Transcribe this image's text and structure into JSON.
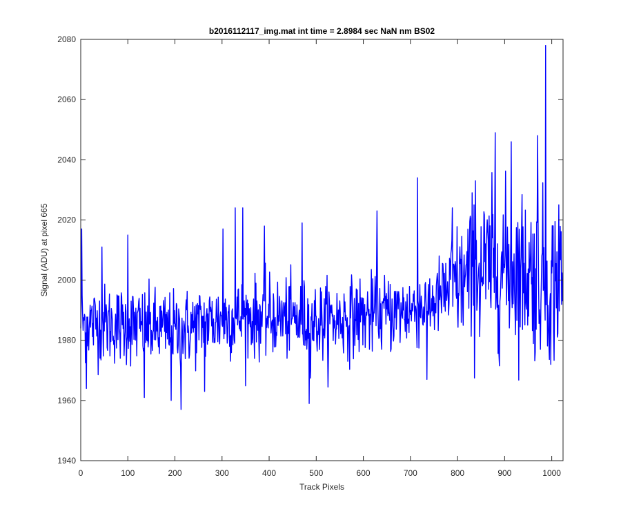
{
  "chart_data": {
    "type": "line",
    "title": "b2016112117_img.mat int time = 2.8984 sec  NaN nm BS02",
    "xlabel": "Track Pixels",
    "ylabel": "Signal (ADU) at pixel 665",
    "xlim": [
      0,
      1024
    ],
    "ylim": [
      1940,
      2080
    ],
    "xticks": [
      0,
      100,
      200,
      300,
      400,
      500,
      600,
      700,
      800,
      900,
      1000
    ],
    "yticks": [
      1940,
      1960,
      1980,
      2000,
      2020,
      2040,
      2060,
      2080
    ],
    "grid": false,
    "legend": "none",
    "line_color": "#0000ff",
    "n_points": 1024,
    "trend": [
      {
        "x": 0,
        "y": 1986
      },
      {
        "x": 100,
        "y": 1985
      },
      {
        "x": 200,
        "y": 1983
      },
      {
        "x": 300,
        "y": 1987
      },
      {
        "x": 400,
        "y": 1988
      },
      {
        "x": 500,
        "y": 1986
      },
      {
        "x": 600,
        "y": 1988
      },
      {
        "x": 700,
        "y": 1990
      },
      {
        "x": 750,
        "y": 1993
      },
      {
        "x": 800,
        "y": 1999
      },
      {
        "x": 850,
        "y": 2003
      },
      {
        "x": 900,
        "y": 2005
      },
      {
        "x": 950,
        "y": 2003
      },
      {
        "x": 1023,
        "y": 1999
      }
    ],
    "peaks": [
      {
        "x": 2,
        "y": 2017
      },
      {
        "x": 12,
        "y": 1964
      },
      {
        "x": 45,
        "y": 2011
      },
      {
        "x": 100,
        "y": 2015
      },
      {
        "x": 135,
        "y": 1961
      },
      {
        "x": 192,
        "y": 1960
      },
      {
        "x": 213,
        "y": 1957
      },
      {
        "x": 263,
        "y": 1963
      },
      {
        "x": 302,
        "y": 2017
      },
      {
        "x": 328,
        "y": 2024
      },
      {
        "x": 344,
        "y": 2024
      },
      {
        "x": 390,
        "y": 2018
      },
      {
        "x": 470,
        "y": 2019
      },
      {
        "x": 485,
        "y": 1959
      },
      {
        "x": 629,
        "y": 2023
      },
      {
        "x": 715,
        "y": 2034
      },
      {
        "x": 735,
        "y": 1967
      },
      {
        "x": 789,
        "y": 2024
      },
      {
        "x": 838,
        "y": 2033
      },
      {
        "x": 880,
        "y": 2049
      },
      {
        "x": 914,
        "y": 2046
      },
      {
        "x": 965,
        "y": 1976
      },
      {
        "x": 970,
        "y": 2048
      },
      {
        "x": 987,
        "y": 2078
      },
      {
        "x": 998,
        "y": 1972
      },
      {
        "x": 1015,
        "y": 2025
      }
    ]
  }
}
